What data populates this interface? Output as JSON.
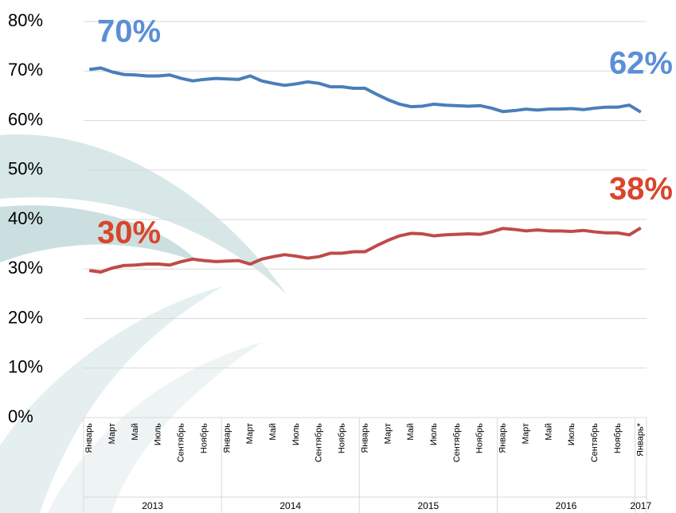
{
  "chart_data": {
    "type": "line",
    "categories": [
      "Январь",
      null,
      "Март",
      null,
      "Май",
      null,
      "Июль",
      null,
      "Сентябрь",
      null,
      "Ноябрь",
      null,
      "Январь",
      null,
      "Март",
      null,
      "Май",
      null,
      "Июль",
      null,
      "Сентябрь",
      null,
      "Ноябрь",
      null,
      "Январь",
      null,
      "Март",
      null,
      "Май",
      null,
      "Июль",
      null,
      "Сентябрь",
      null,
      "Ноябрь",
      null,
      "Январь",
      null,
      "Март",
      null,
      "Май",
      null,
      "Июль",
      null,
      "Сентябрь",
      null,
      "Ноябрь",
      null,
      "Январь*"
    ],
    "years": [
      "2013",
      "2014",
      "2015",
      "2016",
      "2017"
    ],
    "series": [
      {
        "color": "#4a7ebb",
        "values": [
          70.3,
          70.6,
          69.8,
          69.3,
          69.2,
          69.0,
          69.0,
          69.2,
          68.5,
          68.0,
          68.3,
          68.5,
          68.4,
          68.3,
          69.0,
          68.0,
          67.5,
          67.1,
          67.4,
          67.8,
          67.5,
          66.8,
          66.8,
          66.5,
          66.5,
          65.3,
          64.2,
          63.3,
          62.8,
          62.9,
          63.3,
          63.1,
          63.0,
          62.9,
          63.0,
          62.5,
          61.8,
          62.0,
          62.3,
          62.1,
          62.3,
          62.3,
          62.4,
          62.2,
          62.5,
          62.7,
          62.7,
          63.1,
          61.7
        ]
      },
      {
        "color": "#be4b48",
        "values": [
          29.7,
          29.4,
          30.2,
          30.7,
          30.8,
          31.0,
          31.0,
          30.8,
          31.5,
          32.0,
          31.7,
          31.5,
          31.6,
          31.7,
          31.0,
          32.0,
          32.5,
          32.9,
          32.6,
          32.2,
          32.5,
          33.2,
          33.2,
          33.5,
          33.5,
          34.7,
          35.8,
          36.7,
          37.2,
          37.1,
          36.7,
          36.9,
          37.0,
          37.1,
          37.0,
          37.5,
          38.2,
          38.0,
          37.7,
          37.9,
          37.7,
          37.7,
          37.6,
          37.8,
          37.5,
          37.3,
          37.3,
          36.9,
          38.3
        ]
      }
    ],
    "annotations": [
      {
        "text": "70%",
        "color": "#5b8fd6"
      },
      {
        "text": "62%",
        "color": "#5b8fd6"
      },
      {
        "text": "30%",
        "color": "#d9452b"
      },
      {
        "text": "38%",
        "color": "#d9452b"
      }
    ],
    "ylim": [
      0,
      80
    ],
    "yticks": [
      {
        "value": 0,
        "label": "0%"
      },
      {
        "value": 10,
        "label": "10%"
      },
      {
        "value": 20,
        "label": "20%"
      },
      {
        "value": 30,
        "label": "30%"
      },
      {
        "value": 40,
        "label": "40%"
      },
      {
        "value": 50,
        "label": "50%"
      },
      {
        "value": 60,
        "label": "60%"
      },
      {
        "value": 70,
        "label": "70%"
      },
      {
        "value": 80,
        "label": "80%"
      }
    ],
    "grid": true
  }
}
